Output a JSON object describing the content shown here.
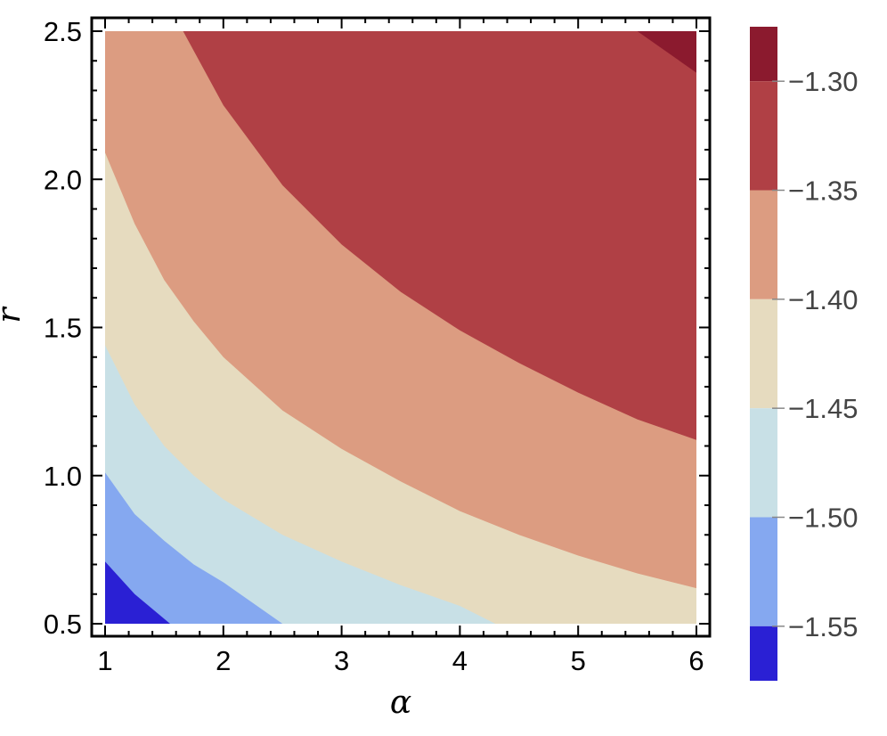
{
  "chart_data": {
    "type": "heatmap",
    "subtype": "filled-contour",
    "xlabel": "α",
    "ylabel": "r",
    "xlim": [
      1,
      6
    ],
    "ylim": [
      0.5,
      2.5
    ],
    "x_ticks": [
      "1",
      "2",
      "3",
      "4",
      "5",
      "6"
    ],
    "y_ticks": [
      "0.5",
      "1.0",
      "1.5",
      "2.0",
      "2.5"
    ],
    "legend_placement": "right (colorbar)",
    "colorbar": {
      "ticks": [
        "−1.30",
        "−1.35",
        "−1.40",
        "−1.45",
        "−1.50",
        "−1.55"
      ],
      "levels": [
        -1.3,
        -1.35,
        -1.4,
        -1.45,
        -1.5,
        -1.55
      ],
      "bands": [
        {
          "range": [
            -1.3,
            -1.275
          ],
          "color": "#8b1a2e"
        },
        {
          "range": [
            -1.35,
            -1.3
          ],
          "color": "#b04045"
        },
        {
          "range": [
            -1.4,
            -1.35
          ],
          "color": "#dc9c81"
        },
        {
          "range": [
            -1.45,
            -1.4
          ],
          "color": "#e6dbbf"
        },
        {
          "range": [
            -1.5,
            -1.45
          ],
          "color": "#c8e0e6"
        },
        {
          "range": [
            -1.55,
            -1.5
          ],
          "color": "#85a8f0"
        },
        {
          "range": [
            -1.575,
            -1.55
          ],
          "color": "#2a20d4"
        }
      ]
    },
    "contours": [
      {
        "level": -1.55,
        "points": [
          [
            1.0,
            0.71
          ],
          [
            1.25,
            0.6
          ],
          [
            1.55,
            0.5
          ]
        ]
      },
      {
        "level": -1.5,
        "points": [
          [
            1.0,
            1.01
          ],
          [
            1.25,
            0.87
          ],
          [
            1.5,
            0.78
          ],
          [
            1.75,
            0.7
          ],
          [
            2.0,
            0.64
          ],
          [
            2.25,
            0.57
          ],
          [
            2.5,
            0.5
          ]
        ]
      },
      {
        "level": -1.45,
        "points": [
          [
            1.0,
            1.44
          ],
          [
            1.25,
            1.24
          ],
          [
            1.5,
            1.1
          ],
          [
            1.75,
            1.0
          ],
          [
            2.0,
            0.92
          ],
          [
            2.5,
            0.8
          ],
          [
            3.0,
            0.71
          ],
          [
            3.5,
            0.63
          ],
          [
            4.0,
            0.56
          ],
          [
            4.3,
            0.5
          ]
        ]
      },
      {
        "level": -1.4,
        "points": [
          [
            1.0,
            2.09
          ],
          [
            1.25,
            1.85
          ],
          [
            1.5,
            1.66
          ],
          [
            1.75,
            1.52
          ],
          [
            2.0,
            1.4
          ],
          [
            2.5,
            1.22
          ],
          [
            3.0,
            1.09
          ],
          [
            3.5,
            0.98
          ],
          [
            4.0,
            0.88
          ],
          [
            4.5,
            0.8
          ],
          [
            5.0,
            0.73
          ],
          [
            5.5,
            0.67
          ],
          [
            6.0,
            0.62
          ]
        ]
      },
      {
        "level": -1.35,
        "points": [
          [
            1.66,
            2.5
          ],
          [
            2.0,
            2.25
          ],
          [
            2.5,
            1.98
          ],
          [
            3.0,
            1.78
          ],
          [
            3.5,
            1.62
          ],
          [
            4.0,
            1.49
          ],
          [
            4.5,
            1.38
          ],
          [
            5.0,
            1.28
          ],
          [
            5.5,
            1.19
          ],
          [
            6.0,
            1.12
          ]
        ]
      },
      {
        "level": -1.3,
        "points": [
          [
            5.5,
            2.5
          ],
          [
            6.0,
            2.36
          ]
        ]
      }
    ]
  }
}
